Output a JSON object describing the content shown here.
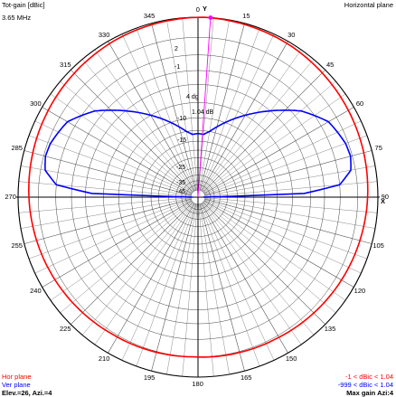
{
  "header": {
    "title": "Tot-gain [dBic]",
    "plane": "Horizontal plane",
    "frequency": "3.65 MHz"
  },
  "footer": {
    "hor_label": "Hor plane",
    "ver_label": "Ver plane",
    "elev_azi": "Elev.=26, Azi.=4",
    "hor_range": "-1 < dBic < 1.04",
    "ver_range": "-999 < dBic < 1.04",
    "max_gain": "Max gain Azi:4"
  },
  "colors": {
    "hor": "#ff0000",
    "ver": "#0000ff",
    "grid": "#000000",
    "marker": "#ff00ff"
  },
  "chart_data": {
    "type": "polar",
    "title": "Tot-gain [dBic]",
    "subtitle": "Horizontal plane",
    "angle_labels": [
      "0",
      "15",
      "30",
      "45",
      "60",
      "75",
      "90",
      "105",
      "120",
      "135",
      "150",
      "165",
      "180",
      "195",
      "210",
      "225",
      "240",
      "255",
      "270",
      "285",
      "300",
      "315",
      "330",
      "345"
    ],
    "axis_markers": [
      "Y",
      "X"
    ],
    "radial_ticks": [
      "2",
      "-1",
      "4 dg",
      "1.04 dB",
      "-10",
      "-15",
      "-25",
      "-35",
      "-45"
    ],
    "max_gain_dbic": 1.04,
    "max_gain_azimuth_deg": 4,
    "elevation_deg": 26,
    "series": [
      {
        "name": "Hor plane",
        "azimuth_deg": [
          0,
          30,
          60,
          90,
          120,
          150,
          180,
          210,
          240,
          270,
          300,
          330
        ],
        "gain_dbic": [
          1.04,
          0.8,
          0.4,
          0.0,
          -0.4,
          -0.8,
          -1.0,
          -0.8,
          -0.4,
          0.0,
          0.4,
          0.8
        ]
      },
      {
        "name": "Ver plane",
        "elevation_deg": [
          0,
          2,
          5,
          10,
          15,
          20,
          30,
          40,
          50,
          60,
          70,
          80,
          85,
          90,
          95,
          100,
          110,
          120,
          130,
          140,
          150,
          160,
          165,
          170,
          175,
          178,
          180
        ],
        "gain_dbic": [
          -999,
          -8,
          -3,
          -1.5,
          -1.2,
          -1.3,
          -2,
          -4,
          -7,
          -10,
          -13,
          -16,
          -17,
          -16.8,
          -17,
          -16,
          -13,
          -10,
          -7,
          -4,
          -2,
          -1.3,
          -1.2,
          -1.5,
          -3,
          -8,
          -999
        ]
      }
    ]
  }
}
